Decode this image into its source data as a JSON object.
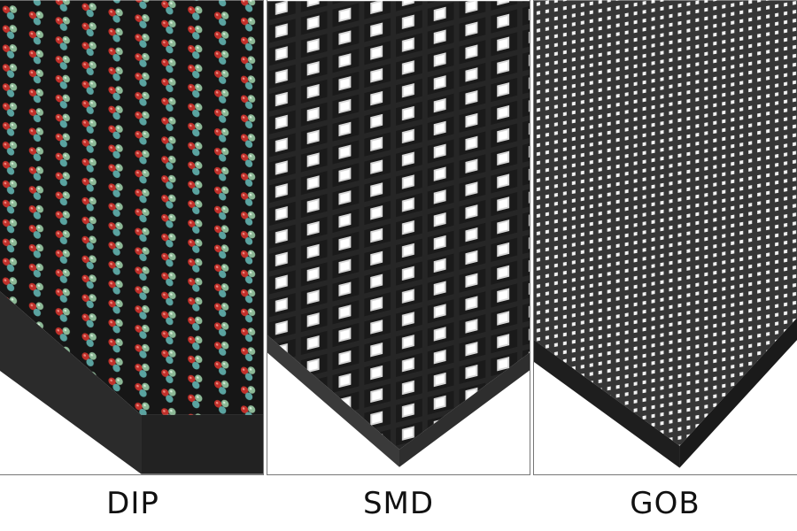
{
  "panels": [
    {
      "label": "DIP",
      "led_colors": [
        "#c0302a",
        "#7fb08a",
        "#5aa3a0"
      ],
      "board_color": "#1e1e1e"
    },
    {
      "label": "SMD",
      "led_colors": [
        "#ffffff"
      ],
      "board_color": "#2a2a2a"
    },
    {
      "label": "GOB",
      "led_colors": [
        "#f2f2f2"
      ],
      "board_color": "#333333"
    }
  ]
}
